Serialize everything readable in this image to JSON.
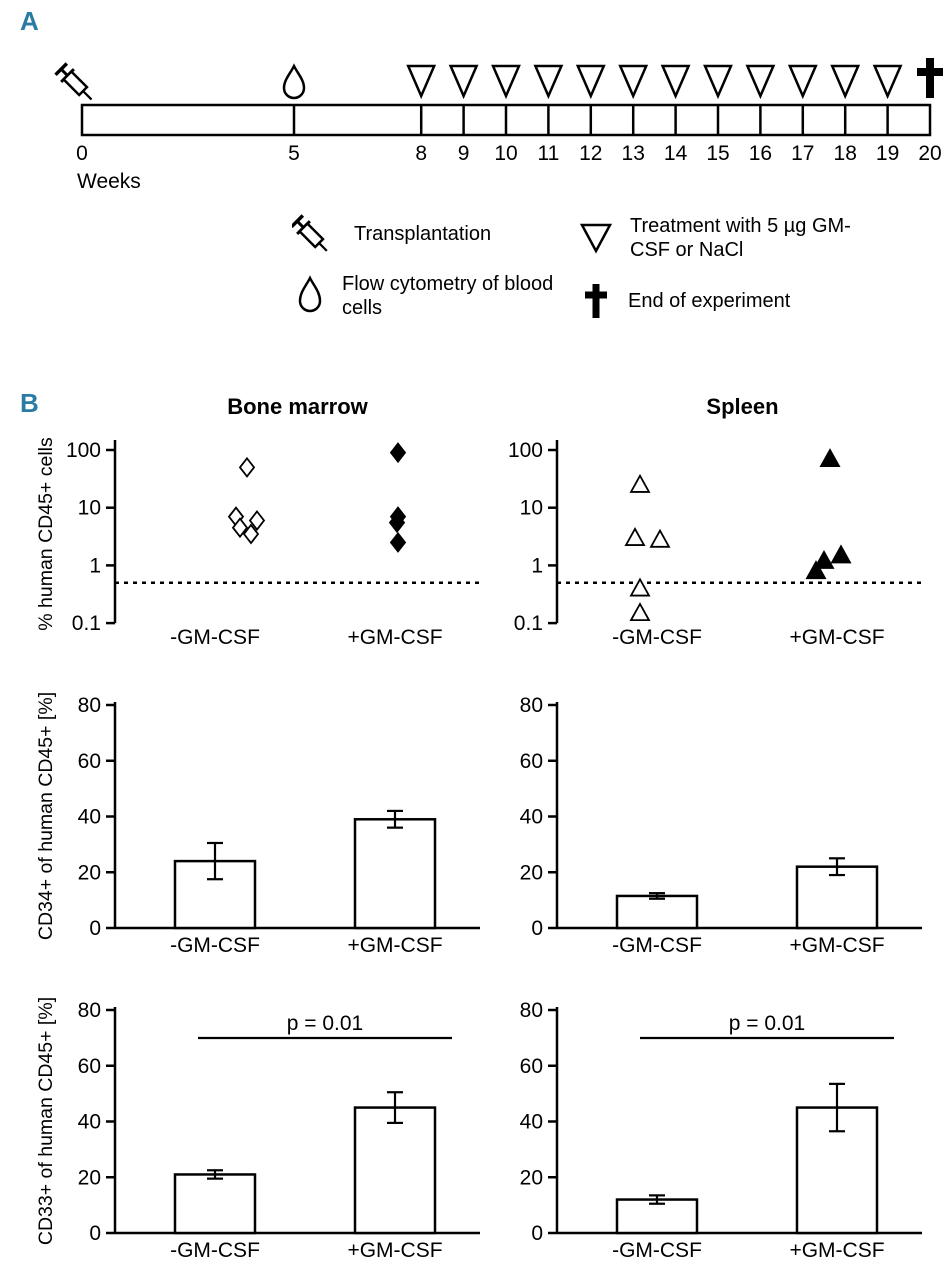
{
  "colors": {
    "panel_label": "#2b7ca5",
    "ink": "#000000"
  },
  "panelA": {
    "label": "A",
    "axis_label": "Weeks",
    "week_ticks": [
      0,
      5,
      8,
      9,
      10,
      11,
      12,
      13,
      14,
      15,
      16,
      17,
      18,
      19,
      20
    ],
    "treatment_weeks": [
      8,
      9,
      10,
      11,
      12,
      13,
      14,
      15,
      16,
      17,
      18,
      19
    ],
    "events": {
      "transplantation_week": 0,
      "flow_cytometry_week": 5,
      "end_of_experiment_week": 20
    },
    "legend": [
      {
        "icon": "syringe-icon",
        "text": "Transplantation"
      },
      {
        "icon": "flow-drop-icon",
        "text": "Flow cytometry of blood cells"
      },
      {
        "icon": "treatment-triangle-icon",
        "text": "Treatment with 5 µg GM-CSF or NaCl"
      },
      {
        "icon": "cross-icon",
        "text": "End of experiment"
      }
    ]
  },
  "panelB": {
    "label": "B",
    "column_headers": [
      "Bone marrow",
      "Spleen"
    ]
  },
  "chart_data": [
    {
      "type": "scatter",
      "title": "Bone marrow",
      "ylabel": "% human CD45+ cells",
      "yscale": "log",
      "ylim": [
        0.1,
        100
      ],
      "yticks": [
        100,
        10,
        1,
        0.1
      ],
      "categories": [
        "-GM-CSF",
        "+GM-CSF"
      ],
      "threshold": 0.5,
      "series": [
        {
          "name": "-GM-CSF",
          "marker": "open-diamond",
          "values": [
            50,
            7,
            6,
            4.5,
            3.5
          ],
          "jitter": [
            32,
            21,
            42,
            25,
            36
          ]
        },
        {
          "name": "+GM-CSF",
          "marker": "filled-diamond",
          "values": [
            90,
            7,
            5.5,
            2.5
          ],
          "jitter": [
            3,
            3,
            2,
            3
          ]
        }
      ]
    },
    {
      "type": "scatter",
      "title": "Spleen",
      "ylabel": "",
      "yscale": "log",
      "ylim": [
        0.1,
        100
      ],
      "yticks": [
        100,
        10,
        1,
        0.1
      ],
      "categories": [
        "-GM-CSF",
        "+GM-CSF"
      ],
      "threshold": 0.5,
      "series": [
        {
          "name": "-GM-CSF",
          "marker": "open-triangle",
          "values": [
            25,
            3,
            2.8,
            0.4,
            0.15
          ],
          "jitter": [
            -17,
            -22,
            3,
            -17,
            -17
          ]
        },
        {
          "name": "+GM-CSF",
          "marker": "filled-triangle",
          "values": [
            70,
            1.5,
            1.2,
            0.8
          ],
          "jitter": [
            -7,
            4,
            -13,
            -21
          ]
        }
      ]
    },
    {
      "type": "bar",
      "title": "Bone marrow",
      "ylabel": "CD34+ of human CD45+ [%]",
      "ylim": [
        0,
        80
      ],
      "yticks": [
        0,
        20,
        40,
        60,
        80
      ],
      "categories": [
        "-GM-CSF",
        "+GM-CSF"
      ],
      "values": [
        24,
        39
      ],
      "errors": [
        6.5,
        3
      ]
    },
    {
      "type": "bar",
      "title": "Spleen",
      "ylabel": "",
      "ylim": [
        0,
        80
      ],
      "yticks": [
        0,
        20,
        40,
        60,
        80
      ],
      "categories": [
        "-GM-CSF",
        "+GM-CSF"
      ],
      "values": [
        11.5,
        22
      ],
      "errors": [
        1,
        3
      ]
    },
    {
      "type": "bar",
      "title": "Bone marrow",
      "ylabel": "CD33+ of human CD45+ [%]",
      "ylim": [
        0,
        80
      ],
      "yticks": [
        0,
        20,
        40,
        60,
        80
      ],
      "categories": [
        "-GM-CSF",
        "+GM-CSF"
      ],
      "values": [
        21,
        45
      ],
      "errors": [
        1.5,
        5.5
      ],
      "p_label": "p = 0.01"
    },
    {
      "type": "bar",
      "title": "Spleen",
      "ylabel": "",
      "ylim": [
        0,
        80
      ],
      "yticks": [
        0,
        20,
        40,
        60,
        80
      ],
      "categories": [
        "-GM-CSF",
        "+GM-CSF"
      ],
      "values": [
        12,
        45
      ],
      "errors": [
        1.5,
        8.5
      ],
      "p_label": "p = 0.01"
    }
  ]
}
